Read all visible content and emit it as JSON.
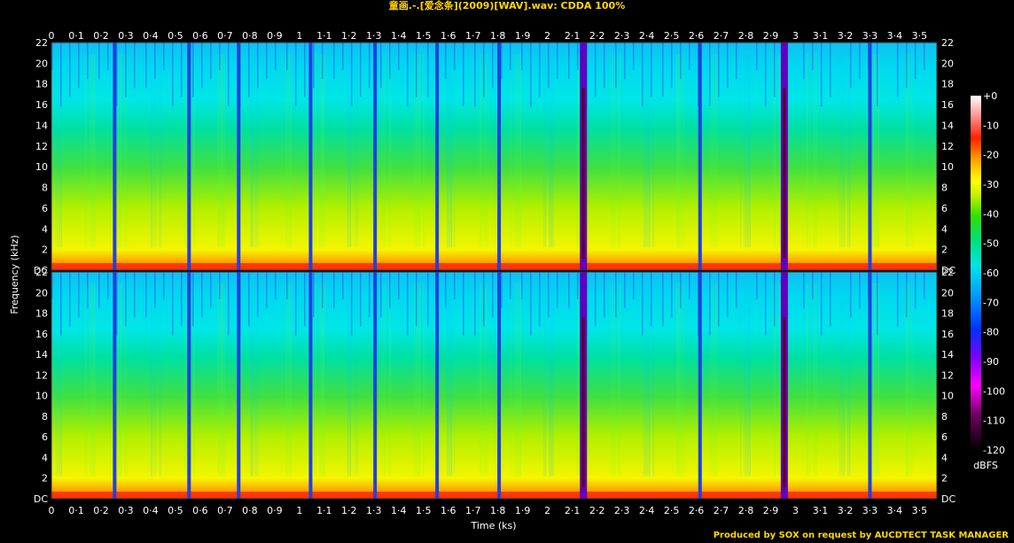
{
  "header": {
    "title": "童画.-.[爱念条](2009)[WAV].wav: CDDA 100%"
  },
  "footer": {
    "credit": "Produced by SOX on request by AUCDTECT TASK MANAGER"
  },
  "chart_data": {
    "type": "heatmap",
    "title": "童画.-.[爱念条](2009)[WAV].wav: CDDA 100%",
    "xlabel": "Time (ks)",
    "ylabel": "Frequency (kHz)",
    "x_ticks": [
      "0",
      "0·1",
      "0·2",
      "0·3",
      "0·4",
      "0·5",
      "0·6",
      "0·7",
      "0·8",
      "0·9",
      "1",
      "1·1",
      "1·2",
      "1·3",
      "1·4",
      "1·5",
      "1·6",
      "1·7",
      "1·8",
      "1·9",
      "2",
      "2·1",
      "2·2",
      "2·3",
      "2·4",
      "2·5",
      "2·6",
      "2·7",
      "2·8",
      "2·9",
      "3",
      "3·1",
      "3·2",
      "3·3",
      "3·4",
      "3·5"
    ],
    "y_ticks": [
      "DC",
      "2",
      "4",
      "6",
      "8",
      "10",
      "12",
      "14",
      "16",
      "18",
      "20",
      "22"
    ],
    "xlim": [
      0,
      3.57
    ],
    "ylim": [
      0,
      22
    ],
    "channels": 2,
    "colorbar": {
      "label": "dBFS",
      "ticks": [
        "+0",
        "-10",
        "-20",
        "-30",
        "-40",
        "-50",
        "-60",
        "-70",
        "-80",
        "-90",
        "-100",
        "-110",
        "-120"
      ],
      "range": [
        -120,
        0
      ]
    },
    "track_boundaries_ks": [
      0.255,
      0.555,
      0.755,
      1.045,
      1.305,
      1.555,
      1.805,
      2.145,
      2.615,
      2.955,
      3.3
    ],
    "colors": {
      "title": "#ffd700",
      "footer": "#ffd700",
      "background": "#000000"
    }
  }
}
